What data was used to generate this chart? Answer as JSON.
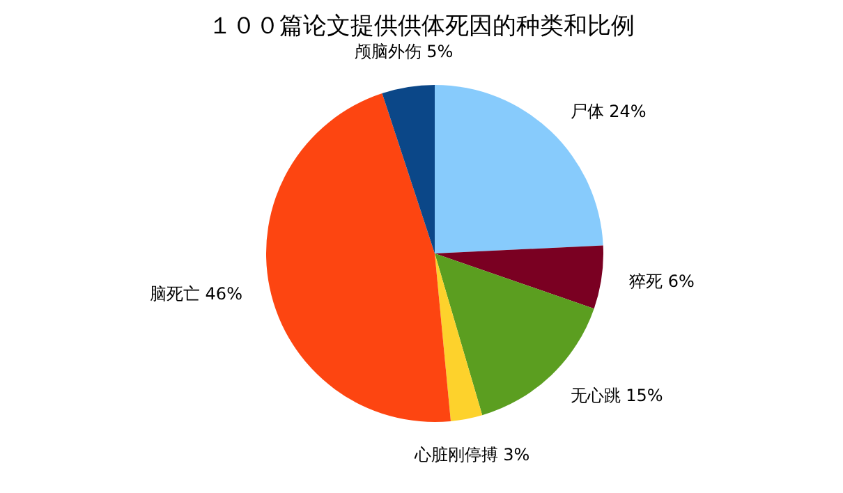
{
  "chart_data": {
    "type": "pie",
    "title": "１００篇论文提供供体死因的种类和比例",
    "categories": [
      "尸体",
      "猝死",
      "无心跳",
      "心脏刚停搏",
      "脑死亡",
      "颅脑外伤"
    ],
    "values": [
      24,
      6,
      15,
      3,
      46,
      5
    ],
    "value_labels": [
      "24%",
      "6%",
      "15%",
      "3%",
      "46%",
      "5%"
    ],
    "colors": [
      "#87cbfc",
      "#7a0022",
      "#5b9e20",
      "#fdd22c",
      "#fd4511",
      "#0b4788"
    ]
  }
}
